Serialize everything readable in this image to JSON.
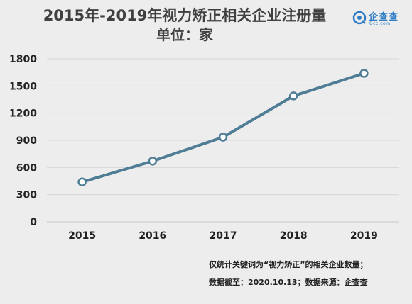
{
  "header": {
    "title": "2015年-2019年视力矫正相关企业注册量",
    "subtitle": "单位：家"
  },
  "logo": {
    "brand": "企查查",
    "domain": "Qcc.com",
    "icon": "qcc-logo-icon",
    "color": "#2e7cc4"
  },
  "chart_data": {
    "type": "line",
    "categories": [
      "2015",
      "2016",
      "2017",
      "2018",
      "2019"
    ],
    "values": [
      440,
      670,
      935,
      1390,
      1640
    ],
    "ylim": [
      0,
      1800
    ],
    "yticks": [
      0,
      300,
      600,
      900,
      1200,
      1500,
      1800
    ],
    "grid": true,
    "line_color": "#4f7d96",
    "marker_fill": "#ffffff"
  },
  "footnotes": {
    "line1": "仅统计关键词为“视力矫正”的相关企业数量；",
    "line2": "数据截至：2020.10.13；数据来源：企查查"
  }
}
